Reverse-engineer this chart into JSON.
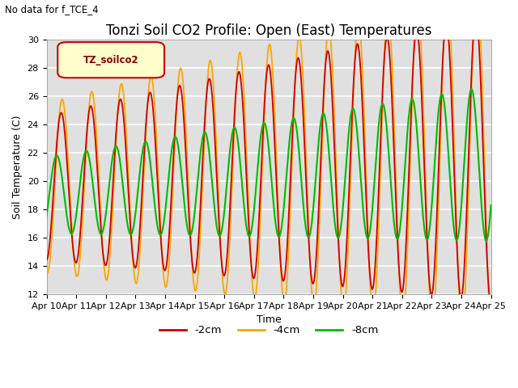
{
  "title": "Tonzi Soil CO2 Profile: Open (East) Temperatures",
  "subtitle": "No data for f_TCE_4",
  "xlabel": "Time",
  "ylabel": "Soil Temperature (C)",
  "ylim": [
    12,
    30
  ],
  "yticks": [
    12,
    14,
    16,
    18,
    20,
    22,
    24,
    26,
    28,
    30
  ],
  "xtick_labels": [
    "Apr 10",
    "Apr 11",
    "Apr 12",
    "Apr 13",
    "Apr 14",
    "Apr 15",
    "Apr 16",
    "Apr 17",
    "Apr 18",
    "Apr 19",
    "Apr 20",
    "Apr 21",
    "Apr 22",
    "Apr 23",
    "Apr 24",
    "Apr 25"
  ],
  "legend_label": "TZ_soilco2",
  "line_labels": [
    "-2cm",
    "-4cm",
    "-8cm"
  ],
  "line_colors": [
    "#cc0000",
    "#ffa500",
    "#00bb00"
  ],
  "plot_bg_color": "#e0e0e0",
  "fig_bg_color": "#ffffff",
  "grid_color": "#ffffff",
  "title_fontsize": 12,
  "axis_label_fontsize": 9,
  "tick_fontsize": 8
}
